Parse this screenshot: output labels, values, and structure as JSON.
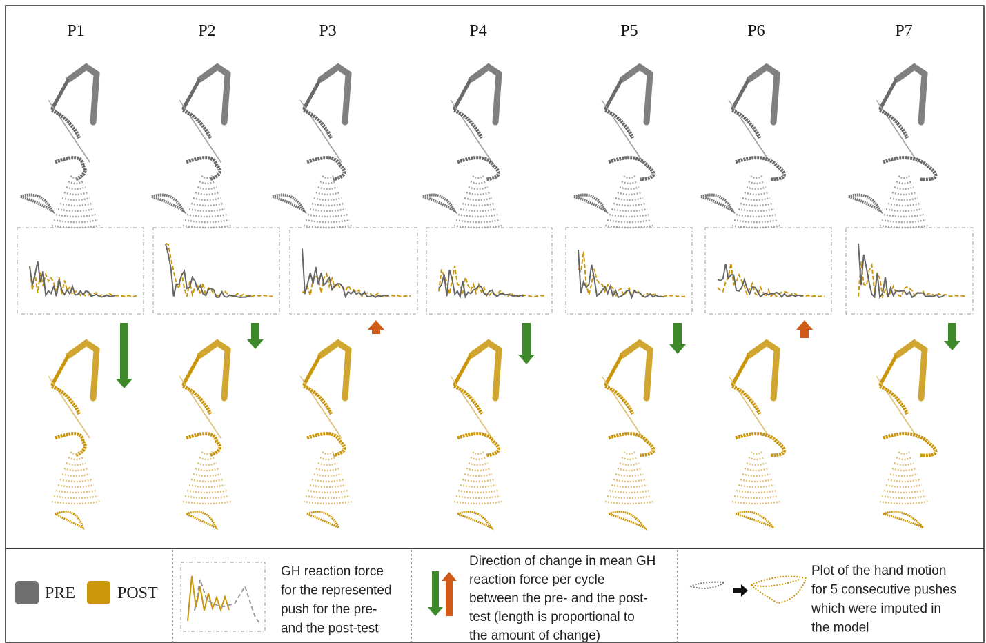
{
  "panels": [
    {
      "label": "P1"
    },
    {
      "label": "P2"
    },
    {
      "label": "P3"
    },
    {
      "label": "P4"
    },
    {
      "label": "P5"
    },
    {
      "label": "P6"
    },
    {
      "label": "P7"
    }
  ],
  "legend": {
    "pre": "PRE",
    "post": "POST",
    "force_text": [
      "GH reaction force",
      "for the represented",
      "push for the pre-",
      "and the post-test"
    ],
    "arrow_text": [
      "Direction of change in mean GH",
      "reaction force per cycle",
      "between the pre- and the post-",
      "test (length is proportional to",
      "the amount of change)"
    ],
    "hand_text": [
      "Plot of the hand motion",
      "for 5 consecutive pushes",
      "which were imputed in",
      "the model"
    ]
  }
}
